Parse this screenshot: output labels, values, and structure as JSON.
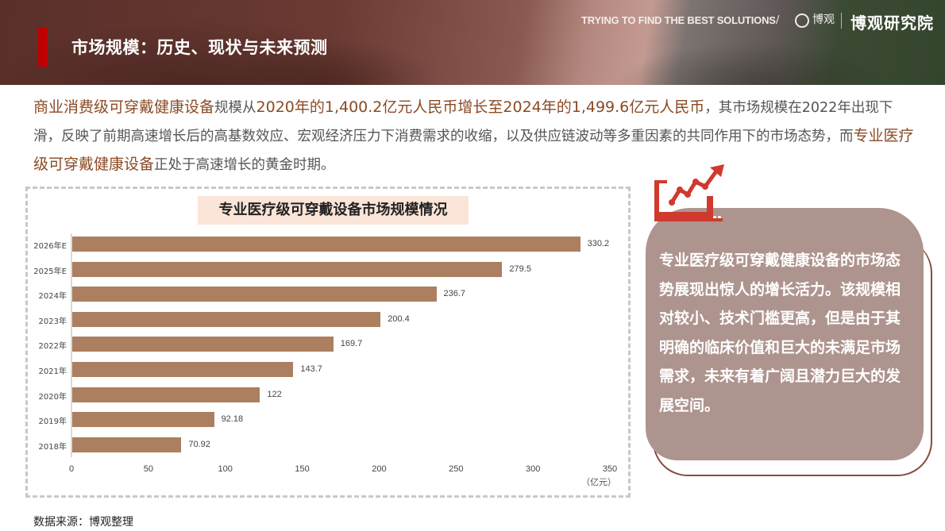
{
  "header": {
    "title": "市场规模：历史、现状与未来预测",
    "tagline": "TRYING TO FIND THE BEST SOLUTIONS",
    "separator": "/",
    "logo_mark": "博观",
    "brand": "博观研究院"
  },
  "intro": {
    "seg1": "商业消费级可穿戴健康设备",
    "seg2": "规模从",
    "seg3": "2020年的1,400.2亿元人民币增长至2024年的1,499.6亿元人民币",
    "seg4": "，其市场规模在2022年出现下滑，反映了前期高速增长后的高基数效应、宏观经济压力下消费需求的收缩，以及供应链波动等多重因素的共同作用下的市场态势，而",
    "seg5": "专业医疗级可穿戴健康设备",
    "seg6": "正处于高速增长的黄金时期。"
  },
  "card": {
    "icon": "growth-chart-icon",
    "text": "专业医疗级可穿戴健康设备的市场态势展现出惊人的增长活力。该规模相对较小、技术门槛更高，但是由于其明确的临床价值和巨大的未满足市场需求，未来有着广阔且潜力巨大的发展空间。"
  },
  "source": "数据来源：博观整理",
  "colors": {
    "bar": "#ab7f5f",
    "accent_red": "#c00000",
    "highlight_text": "#8b4a24",
    "card_bg": "#ae948e",
    "chart_title_bg": "#fbe4d8"
  },
  "chart_data": {
    "type": "bar",
    "orientation": "horizontal",
    "title": "专业医疗级可穿戴设备市场规模情况",
    "categories": [
      "2026年E",
      "2025年E",
      "2024年",
      "2023年",
      "2022年",
      "2021年",
      "2020年",
      "2019年",
      "2018年"
    ],
    "values": [
      330.2,
      279.5,
      236.7,
      200.4,
      169.7,
      143.7,
      122,
      92.18,
      70.92
    ],
    "value_labels": [
      "330.2",
      "279.5",
      "236.7",
      "200.4",
      "169.7",
      "143.7",
      "122",
      "92.18",
      "70.92"
    ],
    "xlabel": "（亿元）",
    "ylabel": "",
    "xlim": [
      0,
      350
    ],
    "xticks": [
      "0",
      "50",
      "100",
      "150",
      "200",
      "250",
      "300",
      "350"
    ],
    "grid": false,
    "legend": null
  }
}
